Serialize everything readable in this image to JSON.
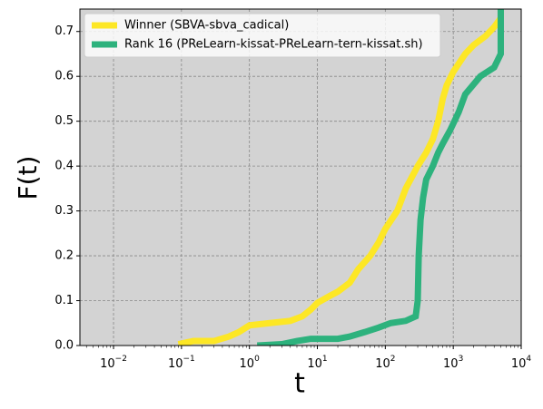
{
  "chart_data": {
    "type": "line",
    "x_label": "t",
    "y_label": "F(t)",
    "log_x": true,
    "grid": true,
    "legend": "upper left",
    "xlim": [
      0.0032,
      10000
    ],
    "ylim": [
      0,
      0.75
    ],
    "xticks": [
      {
        "value": 0.01,
        "label": "10",
        "exponent": "−2"
      },
      {
        "value": 0.1,
        "label": "10",
        "exponent": "−1"
      },
      {
        "value": 1,
        "label": "10",
        "exponent": "0"
      },
      {
        "value": 10,
        "label": "10",
        "exponent": "1"
      },
      {
        "value": 100,
        "label": "10",
        "exponent": "2"
      },
      {
        "value": 1000,
        "label": "10",
        "exponent": "3"
      },
      {
        "value": 10000,
        "label": "10",
        "exponent": "4"
      }
    ],
    "yticks": [
      {
        "value": 0,
        "label": "0.0"
      },
      0.1,
      0.2,
      0.3,
      0.4,
      0.5,
      0.6,
      0.7
    ],
    "series": [
      {
        "name": "Winner (SBVA-sbva_cadical)",
        "color": "#fde725",
        "x": [
          0.09,
          0.15,
          0.3,
          0.5,
          0.7,
          1,
          2,
          4,
          6,
          8,
          10,
          15,
          20,
          30,
          40,
          60,
          80,
          100,
          150,
          200,
          300,
          400,
          500,
          600,
          700,
          800,
          1000,
          1500,
          2000,
          3000,
          4000,
          5000,
          5000
        ],
        "values": [
          0.003,
          0.01,
          0.01,
          0.02,
          0.03,
          0.045,
          0.05,
          0.055,
          0.065,
          0.08,
          0.095,
          0.11,
          0.12,
          0.14,
          0.17,
          0.2,
          0.23,
          0.26,
          0.3,
          0.35,
          0.4,
          0.43,
          0.46,
          0.5,
          0.55,
          0.58,
          0.61,
          0.65,
          0.67,
          0.69,
          0.71,
          0.73,
          0.75
        ]
      },
      {
        "name": "Rank 16 (PReLearn-kissat-PReLearn-tern-kissat.sh)",
        "color": "#2db27d",
        "x": [
          1.3,
          3,
          5,
          8,
          20,
          30,
          50,
          80,
          120,
          200,
          280,
          300,
          310,
          330,
          360,
          400,
          500,
          600,
          700,
          900,
          1200,
          1500,
          2500,
          4000,
          5000,
          5000
        ],
        "values": [
          0,
          0.003,
          0.01,
          0.015,
          0.015,
          0.02,
          0.03,
          0.04,
          0.05,
          0.055,
          0.065,
          0.1,
          0.2,
          0.28,
          0.33,
          0.37,
          0.4,
          0.43,
          0.45,
          0.48,
          0.52,
          0.56,
          0.6,
          0.62,
          0.65,
          0.75
        ]
      }
    ]
  }
}
